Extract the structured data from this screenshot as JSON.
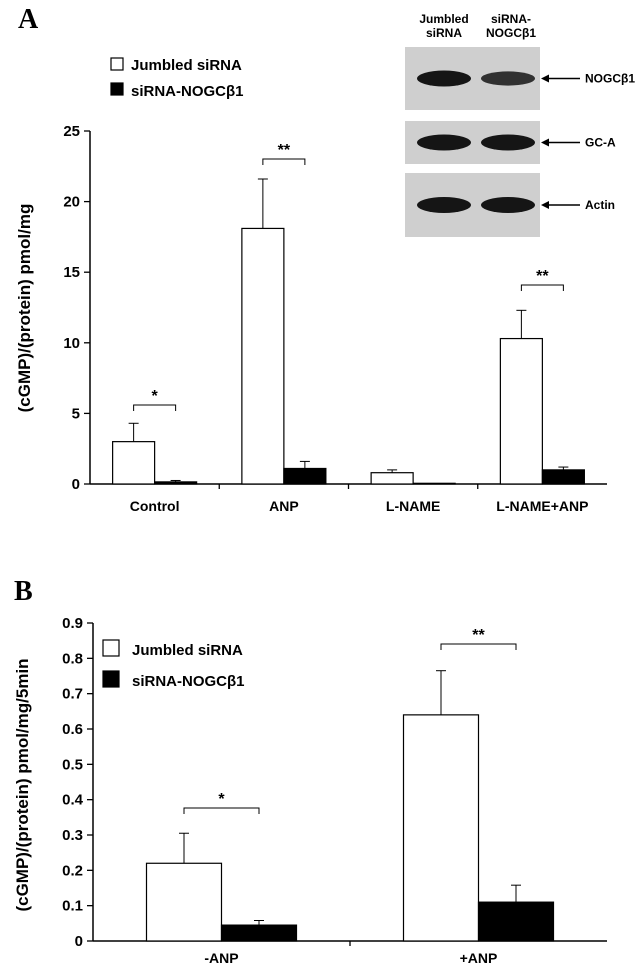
{
  "blot": {
    "lane_labels": [
      [
        "Jumbled",
        "siRNA"
      ],
      [
        "siRNA-",
        "NOGCβ1"
      ]
    ],
    "bands": [
      "NOGCβ1",
      "GC-A",
      "Actin"
    ],
    "band_intensity": [
      [
        1.0,
        0.7
      ],
      [
        1.0,
        1.0
      ],
      [
        1.0,
        1.0
      ]
    ]
  },
  "chart_data": [
    {
      "type": "bar",
      "panel_label": "A",
      "categories": [
        "Control",
        "ANP",
        "L-NAME",
        "L-NAME+ANP"
      ],
      "series": [
        {
          "name": "Jumbled siRNA",
          "color": "#ffffff",
          "values": [
            3.0,
            18.1,
            0.8,
            10.3
          ],
          "errors": [
            1.3,
            3.5,
            0.2,
            2.0
          ]
        },
        {
          "name": "siRNA-NOGCβ1",
          "color": "#000000",
          "values": [
            0.15,
            1.1,
            0.05,
            1.0
          ],
          "errors": [
            0.1,
            0.5,
            0.0,
            0.2
          ]
        }
      ],
      "ylabel": "(cGMP)/(protein) pmol/mg",
      "ylim": [
        0,
        25
      ],
      "yticks": [
        0,
        5,
        10,
        15,
        20,
        25
      ],
      "ytick_labels": [
        "0",
        "5",
        "10",
        "15",
        "20",
        "25"
      ],
      "significance": [
        {
          "category": 0,
          "label": "*"
        },
        {
          "category": 1,
          "label": "**"
        },
        {
          "category": 3,
          "label": "**"
        }
      ],
      "legend_position": "top-left",
      "grid": false
    },
    {
      "type": "bar",
      "panel_label": "B",
      "categories": [
        "-ANP",
        "+ANP"
      ],
      "series": [
        {
          "name": "Jumbled siRNA",
          "color": "#ffffff",
          "values": [
            0.22,
            0.64
          ],
          "errors": [
            0.085,
            0.125
          ]
        },
        {
          "name": "siRNA-NOGCβ1",
          "color": "#000000",
          "values": [
            0.045,
            0.11
          ],
          "errors": [
            0.013,
            0.048
          ]
        }
      ],
      "ylabel": "(cGMP)/(protein) pmol/mg/5min",
      "ylim": [
        0,
        0.9
      ],
      "yticks": [
        0,
        0.1,
        0.2,
        0.3,
        0.4,
        0.5,
        0.6,
        0.7,
        0.8,
        0.9
      ],
      "ytick_labels": [
        "0",
        "0.1",
        "0.2",
        "0.3",
        "0.4",
        "0.5",
        "0.6",
        "0.7",
        "0.8",
        "0.9"
      ],
      "significance": [
        {
          "category": 0,
          "label": "*"
        },
        {
          "category": 1,
          "label": "**"
        }
      ],
      "legend_position": "top-left",
      "grid": false
    }
  ]
}
